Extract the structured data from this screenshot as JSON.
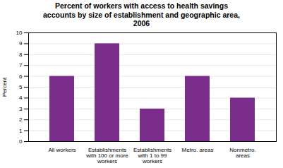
{
  "chart_data": {
    "type": "bar",
    "title": "Percent of workers with access to health savings\naccounts by size of establishment and geographic area,\n2006",
    "categories": [
      "All workers",
      "Establishments\nwith 100 or more\nworkers",
      "Establishments\nwith 1 to 99\nworkers",
      "Metro. areas",
      "Nonmetro.\nareas"
    ],
    "values": [
      6,
      9,
      3,
      6,
      4
    ],
    "color": "#7b2d8b",
    "ylabel": "Percent",
    "ylim": [
      0,
      10
    ],
    "yticks": [
      0,
      1,
      2,
      3,
      4,
      5,
      6,
      7,
      8,
      9,
      10
    ],
    "grid": true
  }
}
